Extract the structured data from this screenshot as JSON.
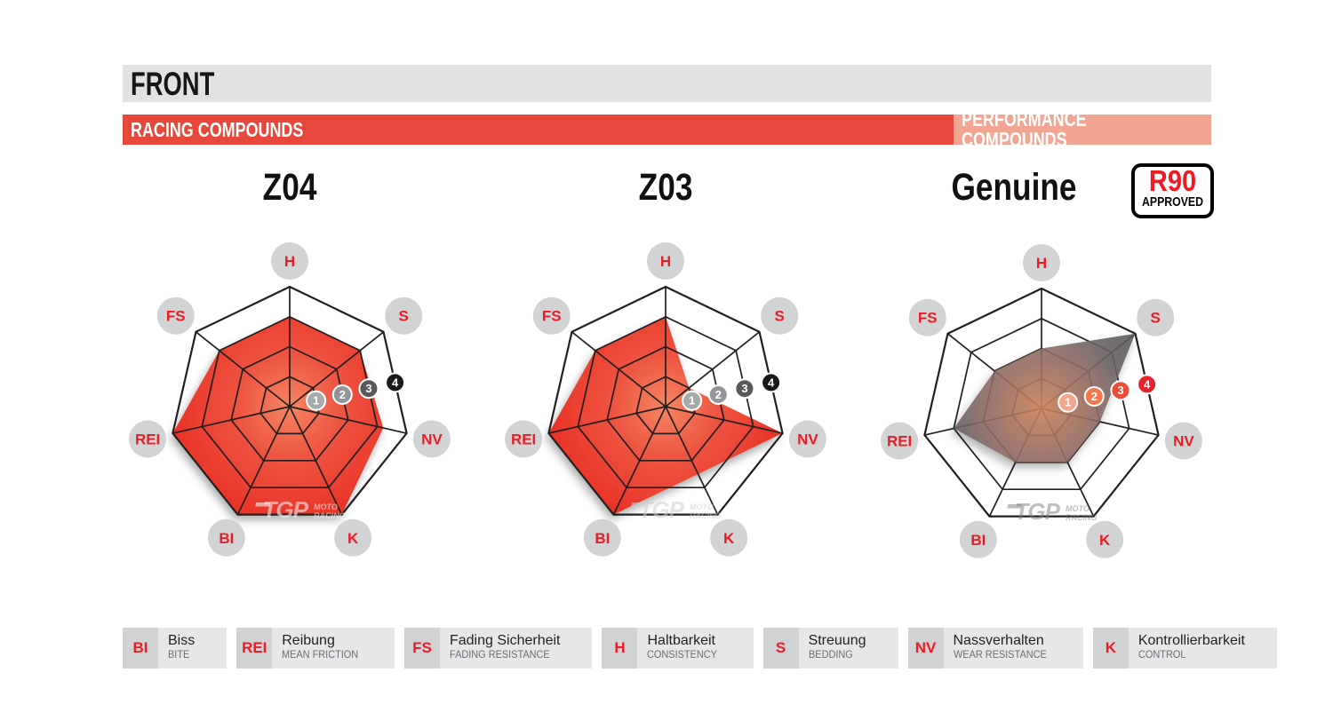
{
  "header": {
    "front_label": "FRONT",
    "bar_bg": "#e2e2e3",
    "sections": [
      {
        "label": "RACING COMPOUNDS",
        "bg": "#e8483b",
        "text_color": "#ffffff"
      },
      {
        "label": "PERFORMANCE COMPOUNDS",
        "bg": "#f2a592",
        "text_color": "#ffffff"
      }
    ]
  },
  "badge": {
    "line1": "R90",
    "line2": "APPROVED",
    "line1_color": "#ed1c24",
    "line2_color": "#000000"
  },
  "watermark": {
    "logo": "TGP",
    "line1": "MOTO",
    "line2": "RACING"
  },
  "axis_style": {
    "label_color": "#ed1c24",
    "label_bg": "#d2d3d4",
    "grid_color": "#231f20"
  },
  "chart_data": [
    {
      "type": "radar",
      "title": "Z04",
      "group": "RACING COMPOUNDS",
      "categories": [
        "H",
        "S",
        "NV",
        "K",
        "BI",
        "REI",
        "FS"
      ],
      "values": [
        3,
        3,
        3.2,
        4,
        4,
        4,
        3
      ],
      "range": [
        0,
        4
      ],
      "ticks": [
        1,
        2,
        3,
        4
      ],
      "fill_stops": [
        {
          "offset": "0%",
          "color": "#f58562"
        },
        {
          "offset": "45%",
          "color": "#ee5340"
        },
        {
          "offset": "100%",
          "color": "#e93126"
        }
      ],
      "fill_opacity": 1,
      "fill_over_grid": false,
      "badge_colors": [
        "#a7a9ac",
        "#939598",
        "#58595b",
        "#1a1a1a"
      ],
      "watermark_color": "rgba(240,240,240,0.6)"
    },
    {
      "type": "radar",
      "title": "Z03",
      "group": "RACING COMPOUNDS",
      "categories": [
        "H",
        "S",
        "NV",
        "K",
        "BI",
        "REI",
        "FS"
      ],
      "values": [
        3,
        1,
        4,
        2.5,
        4,
        4,
        3
      ],
      "range": [
        0,
        4
      ],
      "ticks": [
        1,
        2,
        3,
        4
      ],
      "fill_stops": [
        {
          "offset": "0%",
          "color": "#f58562"
        },
        {
          "offset": "45%",
          "color": "#ee5340"
        },
        {
          "offset": "100%",
          "color": "#e93126"
        }
      ],
      "fill_opacity": 1,
      "fill_over_grid": false,
      "badge_colors": [
        "#a7a9ac",
        "#939598",
        "#58595b",
        "#1a1a1a"
      ],
      "watermark_color": "rgba(205,205,205,0.55)"
    },
    {
      "type": "radar",
      "title": "Genuine",
      "group": "PERFORMANCE COMPOUNDS",
      "categories": [
        "H",
        "S",
        "NV",
        "K",
        "BI",
        "REI",
        "FS"
      ],
      "values": [
        2,
        4,
        2,
        2,
        2,
        3,
        2
      ],
      "range": [
        0,
        4
      ],
      "ticks": [
        1,
        2,
        3,
        4
      ],
      "fill_stops": [
        {
          "offset": "0%",
          "color": "#cd845b"
        },
        {
          "offset": "35%",
          "color": "#a07163"
        },
        {
          "offset": "70%",
          "color": "#6b6364"
        },
        {
          "offset": "100%",
          "color": "#59585b"
        }
      ],
      "fill_opacity": 0.88,
      "fill_over_grid": true,
      "badge_colors": [
        "#f6a68b",
        "#f4764d",
        "#ef4b38",
        "#e8212b"
      ],
      "watermark_color": "rgba(125,125,128,0.5)"
    }
  ],
  "legend": [
    {
      "abbr": "BI",
      "term": "Biss",
      "translation": "BITE"
    },
    {
      "abbr": "REI",
      "term": "Reibung",
      "translation": "MEAN FRICTION"
    },
    {
      "abbr": "FS",
      "term": "Fading Sicherheit",
      "translation": "FADING RESISTANCE"
    },
    {
      "abbr": "H",
      "term": "Haltbarkeit",
      "translation": "CONSISTENCY"
    },
    {
      "abbr": "S",
      "term": "Streuung",
      "translation": "BEDDING"
    },
    {
      "abbr": "NV",
      "term": "Nassverhalten",
      "translation": "WEAR RESISTANCE"
    },
    {
      "abbr": "K",
      "term": "Kontrollierbarkeit",
      "translation": "CONTROL"
    }
  ]
}
